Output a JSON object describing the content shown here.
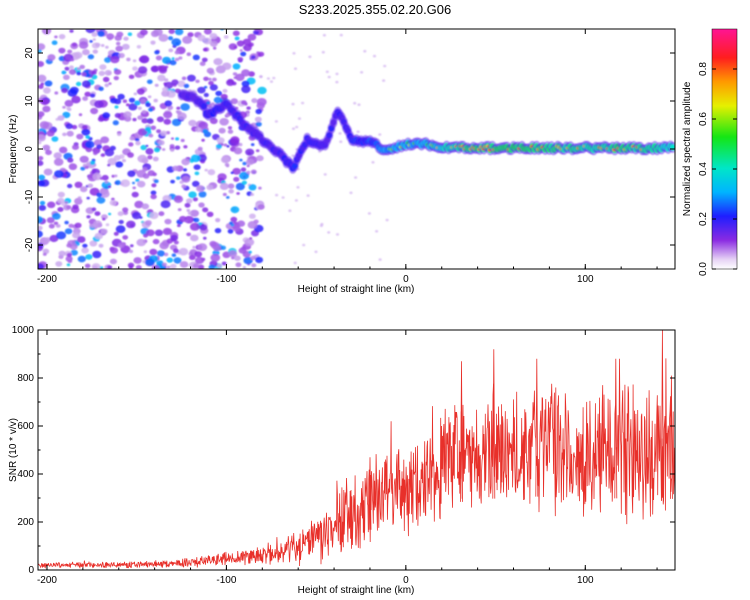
{
  "title": "S233.2025.355.02.20.G06",
  "chart_data": [
    {
      "type": "heatmap",
      "name": "spectrogram",
      "xlabel": "Height of straight line (km)",
      "ylabel": "Frequency (Hz)",
      "xlim": [
        -205,
        150
      ],
      "ylim": [
        -25,
        25
      ],
      "xticks": [
        -200,
        -100,
        0,
        100
      ],
      "yticks": [
        -20,
        -10,
        0,
        10,
        20
      ],
      "colorbar": {
        "label": "Normalized spectral amplitude",
        "range": [
          0,
          0.96
        ],
        "ticks": [
          0.0,
          0.2,
          0.4,
          0.6,
          0.8
        ],
        "colormap": "rainbow (violet-blue-cyan-green-yellow-orange-red-magenta)"
      },
      "ridge": [
        {
          "x": -125,
          "f": 11.5,
          "a": 0.25
        },
        {
          "x": -115,
          "f": 10.0,
          "a": 0.3
        },
        {
          "x": -110,
          "f": 7.0,
          "a": 0.35
        },
        {
          "x": -100,
          "f": 9.5,
          "a": 0.3
        },
        {
          "x": -90,
          "f": 5.0,
          "a": 0.3
        },
        {
          "x": -80,
          "f": 2.0,
          "a": 0.3
        },
        {
          "x": -70,
          "f": -1.0,
          "a": 0.3
        },
        {
          "x": -63,
          "f": -4.0,
          "a": 0.35
        },
        {
          "x": -55,
          "f": 2.0,
          "a": 0.3
        },
        {
          "x": -45,
          "f": 0.5,
          "a": 0.3
        },
        {
          "x": -38,
          "f": 8.0,
          "a": 0.3
        },
        {
          "x": -30,
          "f": 2.0,
          "a": 0.35
        },
        {
          "x": -20,
          "f": 1.5,
          "a": 0.4
        },
        {
          "x": -10,
          "f": -0.5,
          "a": 0.5
        },
        {
          "x": 0,
          "f": 1.0,
          "a": 0.55
        },
        {
          "x": 10,
          "f": 1.0,
          "a": 0.5
        },
        {
          "x": 25,
          "f": 0.2,
          "a": 0.7
        },
        {
          "x": 40,
          "f": 0.2,
          "a": 0.75
        },
        {
          "x": 60,
          "f": 0.2,
          "a": 0.8
        },
        {
          "x": 80,
          "f": 0.2,
          "a": 0.75
        },
        {
          "x": 100,
          "f": 0.2,
          "a": 0.7
        },
        {
          "x": 120,
          "f": 0.2,
          "a": 0.75
        },
        {
          "x": 140,
          "f": 0.2,
          "a": 0.7
        },
        {
          "x": 150,
          "f": 0.5,
          "a": 0.6
        }
      ],
      "noise_region_km": [
        -205,
        -80
      ]
    },
    {
      "type": "line",
      "name": "snr",
      "xlabel": "Height of straight line (km)",
      "ylabel": "SNR (10 * v/v)",
      "xlim": [
        -205,
        150
      ],
      "ylim": [
        0,
        1000
      ],
      "xticks": [
        -200,
        -100,
        0,
        100
      ],
      "yticks": [
        0,
        200,
        400,
        600,
        800,
        1000
      ],
      "color": "#e8302a",
      "envelope": {
        "x": [
          -205,
          -150,
          -120,
          -100,
          -80,
          -60,
          -50,
          -40,
          -30,
          -20,
          -10,
          0,
          10,
          20,
          30,
          40,
          60,
          80,
          100,
          120,
          140,
          150
        ],
        "y": [
          20,
          22,
          30,
          50,
          60,
          90,
          120,
          160,
          230,
          280,
          330,
          350,
          380,
          450,
          470,
          500,
          490,
          520,
          480,
          500,
          470,
          500
        ]
      },
      "spread": {
        "x": [
          -205,
          -150,
          -120,
          -100,
          -80,
          -60,
          -40,
          -20,
          0,
          20,
          40,
          60,
          80,
          100,
          120,
          150
        ],
        "y": [
          10,
          12,
          18,
          25,
          35,
          60,
          110,
          160,
          170,
          200,
          230,
          230,
          230,
          230,
          240,
          240
        ]
      },
      "peaks": [
        {
          "x": 49,
          "y": 920
        },
        {
          "x": 31,
          "y": 870
        },
        {
          "x": 73,
          "y": 880
        },
        {
          "x": 117,
          "y": 880
        },
        {
          "x": 143,
          "y": 1000
        },
        {
          "x": 148,
          "y": 810
        },
        {
          "x": -20,
          "y": 470
        }
      ]
    }
  ]
}
